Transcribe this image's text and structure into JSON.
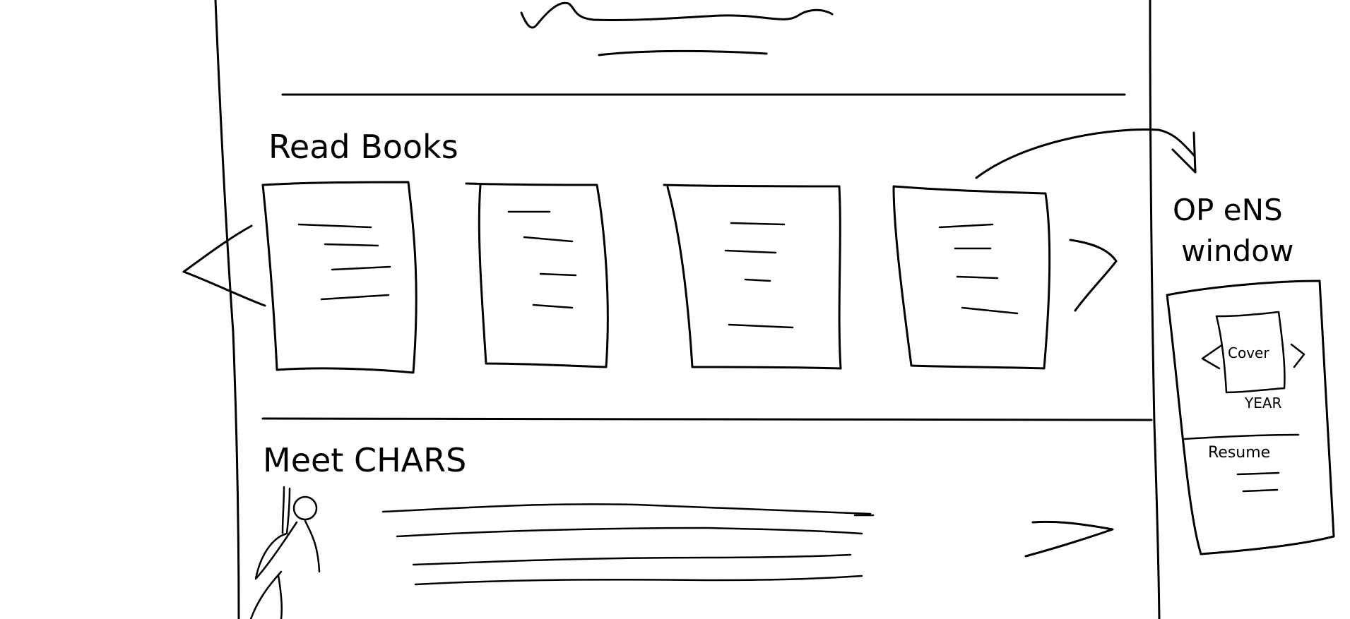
{
  "sections": {
    "books_title": "Read Books",
    "chars_title": "Meet CHARS"
  },
  "note": {
    "line1": "OP eNS",
    "line2": "window"
  },
  "popup": {
    "cover_label": "Cover",
    "year_label": "YEAR",
    "resume_label": "Resume"
  },
  "book_cards": [
    {
      "id": "book-1"
    },
    {
      "id": "book-2"
    },
    {
      "id": "book-3"
    },
    {
      "id": "book-4"
    }
  ]
}
